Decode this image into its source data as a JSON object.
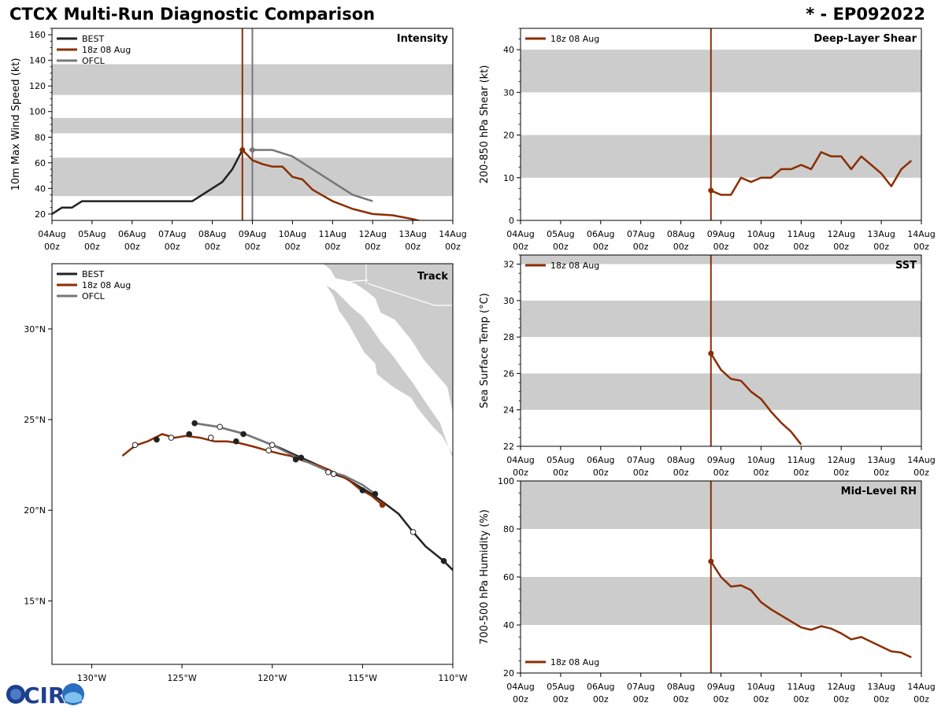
{
  "header": {
    "title": "CTCX Multi-Run Diagnostic Comparison",
    "storm_id": "* - EP092022"
  },
  "logo": {
    "text": "CIRA"
  },
  "colors": {
    "best": "#222222",
    "run": "#8b2e04",
    "ofcl": "#777777",
    "band": "#cccccc",
    "land": "#cccccc"
  },
  "legend": {
    "best": "BEST",
    "run": "18z 08 Aug",
    "ofcl": "OFCL"
  },
  "time_axis": {
    "day_labels": [
      "04Aug",
      "05Aug",
      "06Aug",
      "07Aug",
      "08Aug",
      "09Aug",
      "10Aug",
      "11Aug",
      "12Aug",
      "13Aug",
      "14Aug"
    ],
    "hour_label": "00z",
    "init_day": 4.75
  },
  "chart_data": [
    {
      "id": "intensity",
      "type": "line",
      "title": "Intensity",
      "ylabel": "10m Max Wind Speed (kt)",
      "xlim": [
        0,
        10
      ],
      "ylim": [
        15,
        165
      ],
      "yticks": [
        20,
        40,
        60,
        80,
        100,
        120,
        140,
        160
      ],
      "bands": [
        [
          34,
          64
        ],
        [
          83,
          95
        ],
        [
          113,
          137
        ]
      ],
      "init_lines": [
        4.75,
        5.0
      ],
      "series": [
        {
          "name": "BEST",
          "x": [
            0,
            0.25,
            0.5,
            0.75,
            1,
            1.25,
            1.5,
            1.75,
            2,
            2.25,
            2.5,
            2.75,
            3,
            3.25,
            3.5,
            3.75,
            4,
            4.25,
            4.5,
            4.75
          ],
          "y": [
            20,
            25,
            25,
            30,
            30,
            30,
            30,
            30,
            30,
            30,
            30,
            30,
            30,
            30,
            30,
            35,
            40,
            45,
            55,
            70
          ]
        },
        {
          "name": "18z 08 Aug",
          "x": [
            4.75,
            5,
            5.25,
            5.5,
            5.75,
            6,
            6.25,
            6.5,
            7,
            7.5,
            8,
            8.5,
            9,
            9.25
          ],
          "y": [
            70,
            62,
            59,
            57,
            57,
            49,
            47,
            39,
            30,
            24,
            20,
            19,
            16,
            14
          ]
        },
        {
          "name": "OFCL",
          "x": [
            5,
            5.5,
            6,
            7,
            7.5,
            8
          ],
          "y": [
            70,
            70,
            65,
            45,
            35,
            30
          ]
        }
      ],
      "markers": [
        {
          "series": "OFCL",
          "x": 5,
          "y": 70
        }
      ]
    },
    {
      "id": "shear",
      "type": "line",
      "title": "Deep-Layer Shear",
      "ylabel": "200-850 hPa Shear (kt)",
      "xlim": [
        0,
        10
      ],
      "ylim": [
        0,
        45
      ],
      "yticks": [
        0,
        10,
        20,
        30,
        40
      ],
      "bands": [
        [
          10,
          20
        ],
        [
          30,
          40
        ]
      ],
      "init_lines": [
        4.75
      ],
      "series": [
        {
          "name": "18z 08 Aug",
          "x": [
            4.75,
            5,
            5.25,
            5.5,
            5.75,
            6,
            6.25,
            6.5,
            6.75,
            7,
            7.25,
            7.5,
            7.75,
            8,
            8.25,
            8.5,
            8.75,
            9,
            9.25,
            9.5,
            9.75
          ],
          "y": [
            7,
            6,
            6,
            10,
            9,
            10,
            10,
            12,
            12,
            13,
            12,
            16,
            15,
            15,
            12,
            15,
            13,
            11,
            8,
            12,
            14
          ]
        }
      ]
    },
    {
      "id": "sst",
      "type": "line",
      "title": "SST",
      "ylabel": "Sea Surface Temp (°C)",
      "xlim": [
        0,
        10
      ],
      "ylim": [
        22,
        32.5
      ],
      "yticks": [
        22,
        24,
        26,
        28,
        30,
        32
      ],
      "bands": [
        [
          24,
          26
        ],
        [
          28,
          30
        ],
        [
          32,
          32.5
        ]
      ],
      "init_lines": [
        4.75
      ],
      "series": [
        {
          "name": "18z 08 Aug",
          "x": [
            4.75,
            5,
            5.25,
            5.5,
            5.75,
            6,
            6.25,
            6.5,
            6.75,
            7
          ],
          "y": [
            27.1,
            26.2,
            25.7,
            25.6,
            25,
            24.6,
            23.9,
            23.3,
            22.8,
            22.1
          ]
        }
      ]
    },
    {
      "id": "rh",
      "type": "line",
      "title": "Mid-Level RH",
      "ylabel": "700-500 hPa Humidity (%)",
      "xlim": [
        0,
        10
      ],
      "ylim": [
        20,
        100
      ],
      "yticks": [
        20,
        40,
        60,
        80,
        100
      ],
      "bands": [
        [
          40,
          60
        ],
        [
          80,
          100
        ]
      ],
      "init_lines": [
        4.75
      ],
      "series": [
        {
          "name": "18z 08 Aug",
          "x": [
            4.75,
            5,
            5.25,
            5.5,
            5.75,
            6,
            6.25,
            6.5,
            6.75,
            7,
            7.25,
            7.5,
            7.75,
            8,
            8.25,
            8.5,
            8.75,
            9,
            9.25,
            9.5,
            9.75
          ],
          "y": [
            66.5,
            60,
            56,
            56.5,
            54.5,
            49.5,
            46.5,
            44,
            41.5,
            39,
            38,
            39.5,
            38.5,
            36.5,
            34,
            35,
            33,
            31,
            29,
            28.5,
            26.5
          ]
        }
      ]
    },
    {
      "id": "track",
      "type": "line",
      "title": "Track",
      "xlim": [
        -132.2,
        -110
      ],
      "ylim": [
        11.5,
        33.6
      ],
      "xticks": [
        -130,
        -125,
        -120,
        -115,
        -110
      ],
      "xtick_labels": [
        "130°W",
        "125°W",
        "120°W",
        "115°W",
        "110°W"
      ],
      "yticks": [
        15,
        20,
        25,
        30
      ],
      "ytick_labels": [
        "15°N",
        "20°N",
        "25°N",
        "30°N"
      ],
      "series": [
        {
          "name": "BEST",
          "lon": [
            -110,
            -110.5,
            -111.5,
            -112.2,
            -113,
            -113.8,
            -114.5,
            -115,
            -116,
            -116.6,
            -117.5,
            -118.4,
            -119.5,
            -120,
            -121.5,
            -123,
            -124.3
          ],
          "lat": [
            16.7,
            17.2,
            18,
            18.8,
            19.8,
            20.4,
            20.9,
            21.2,
            21.8,
            22,
            22.5,
            22.9,
            23.4,
            23.6,
            24.2,
            24.6,
            24.8
          ]
        },
        {
          "name": "18z 08 Aug",
          "lon": [
            -113.9,
            -114.5,
            -115.2,
            -115.8,
            -116.8,
            -117.5,
            -118.2,
            -119,
            -119.5,
            -120.3,
            -121,
            -121.8,
            -122.5,
            -123.2,
            -124,
            -124.8,
            -125.4,
            -126.1,
            -126.9,
            -127.5,
            -127.8,
            -128.3
          ],
          "lat": [
            20.3,
            20.8,
            21.2,
            21.7,
            22.2,
            22.5,
            22.7,
            23,
            23.1,
            23.3,
            23.5,
            23.7,
            23.8,
            23.8,
            24,
            24.1,
            24,
            24.2,
            23.8,
            23.6,
            23.4,
            23
          ]
        },
        {
          "name": "OFCL",
          "lon": [
            -114.3,
            -115,
            -116,
            -117,
            -118.6,
            -120,
            -121.5,
            -123,
            -124.3
          ],
          "lat": [
            20.9,
            21.4,
            21.9,
            22.2,
            22.9,
            23.6,
            24.2,
            24.6,
            24.8
          ]
        }
      ],
      "points": [
        {
          "lon": -110.5,
          "lat": 17.2,
          "fill": "solid",
          "series": "BEST"
        },
        {
          "lon": -112.2,
          "lat": 18.8,
          "fill": "open",
          "series": "BEST"
        },
        {
          "lon": -115,
          "lat": 21.1,
          "fill": "solid",
          "series": "BEST"
        },
        {
          "lon": -116.9,
          "lat": 22.1,
          "fill": "open",
          "series": "BEST"
        },
        {
          "lon": -118.4,
          "lat": 22.9,
          "fill": "solid",
          "series": "BEST"
        },
        {
          "lon": -120.2,
          "lat": 23.3,
          "fill": "open",
          "series": "BEST"
        },
        {
          "lon": -121.6,
          "lat": 24.2,
          "fill": "solid",
          "series": "BEST"
        },
        {
          "lon": -122.9,
          "lat": 24.6,
          "fill": "open",
          "series": "BEST"
        },
        {
          "lon": -124.3,
          "lat": 24.8,
          "fill": "solid",
          "series": "BEST"
        },
        {
          "lon": -114.3,
          "lat": 20.9,
          "fill": "solid",
          "series": "OFCL"
        },
        {
          "lon": -116.6,
          "lat": 22,
          "fill": "open",
          "series": "OFCL"
        },
        {
          "lon": -118.7,
          "lat": 22.8,
          "fill": "solid",
          "series": "OFCL"
        },
        {
          "lon": -120,
          "lat": 23.6,
          "fill": "open",
          "series": "OFCL"
        },
        {
          "lon": -113.9,
          "lat": 20.3,
          "fill": "solid",
          "series": "18z 08 Aug"
        },
        {
          "lon": -122,
          "lat": 23.8,
          "fill": "solid",
          "series": "18z 08 Aug"
        },
        {
          "lon": -123.4,
          "lat": 24,
          "fill": "open",
          "series": "18z 08 Aug"
        },
        {
          "lon": -124.6,
          "lat": 24.2,
          "fill": "solid",
          "series": "18z 08 Aug"
        },
        {
          "lon": -125.6,
          "lat": 24,
          "fill": "open",
          "series": "18z 08 Aug"
        },
        {
          "lon": -126.4,
          "lat": 23.9,
          "fill": "solid",
          "series": "18z 08 Aug"
        },
        {
          "lon": -127.6,
          "lat": 23.6,
          "fill": "open",
          "series": "18z 08 Aug"
        }
      ],
      "land": [
        {
          "name": "mexico-mainland",
          "lon": [
            -114.3,
            -114,
            -113.2,
            -112.3,
            -111.6,
            -111,
            -110.3,
            -110,
            -110,
            -117.2,
            -116.8,
            -116.5,
            -116,
            -115.4,
            -114.8,
            -114.3
          ],
          "lat": [
            31.7,
            30.9,
            30.5,
            29.4,
            28.3,
            27.6,
            26.8,
            25.4,
            33.6,
            33.6,
            33.3,
            32.8,
            32.7,
            32.5,
            32.1,
            31.7
          ]
        },
        {
          "name": "baja-peninsula",
          "lon": [
            -117,
            -116.6,
            -116.3,
            -115.8,
            -115.4,
            -114.9,
            -114.3,
            -114.2,
            -113.3,
            -112.3,
            -112,
            -111.6,
            -111.1,
            -110.6,
            -110.3,
            -110,
            -110,
            -110.2,
            -110.5,
            -110.7,
            -111.4,
            -112.2,
            -112.8,
            -113.3,
            -114,
            -114.4,
            -115,
            -115.5,
            -116,
            -116.5,
            -117
          ],
          "lat": [
            32.4,
            31.8,
            31,
            30.3,
            29.6,
            28.7,
            28.1,
            27.5,
            26.8,
            26.2,
            25.7,
            25.2,
            24.6,
            24.1,
            23.6,
            23.1,
            22.9,
            23.4,
            24.2,
            24.8,
            25.8,
            27,
            27.8,
            28.5,
            29.3,
            29.9,
            30.7,
            31.1,
            31.6,
            32.1,
            32.4
          ]
        }
      ],
      "borders": [
        {
          "lon": [
            -117.1,
            -114.7
          ],
          "lat": [
            32.5,
            32.7
          ]
        },
        {
          "lon": [
            -114.7,
            -111
          ],
          "lat": [
            32.5,
            31.3
          ]
        },
        {
          "lon": [
            -111,
            -110
          ],
          "lat": [
            31.3,
            31.3
          ]
        },
        {
          "lon": [
            -114.8,
            -114.8
          ],
          "lat": [
            32.5,
            33.6
          ]
        }
      ]
    }
  ]
}
